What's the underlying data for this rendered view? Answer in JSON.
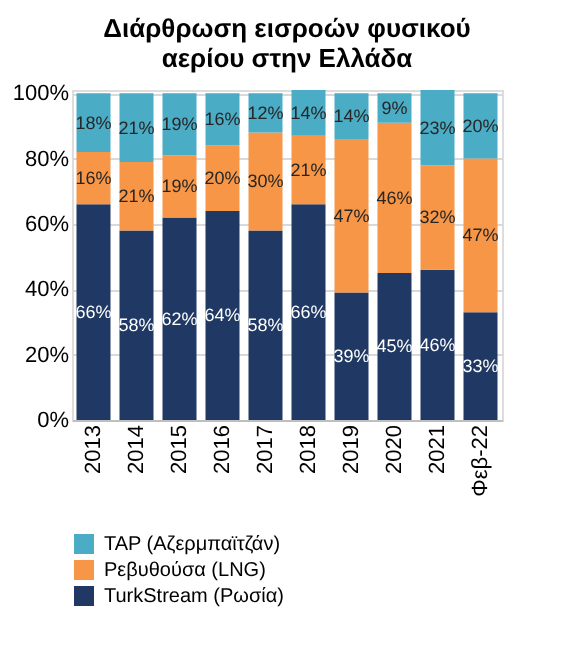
{
  "chart_data": {
    "type": "bar",
    "stacked": true,
    "title": "Διάρθρωση εισροών φυσικού αερίου στην Ελλάδα",
    "categories": [
      "2013",
      "2014",
      "2015",
      "2016",
      "2017",
      "2018",
      "2019",
      "2020",
      "2021",
      "Φεβ-22"
    ],
    "series": [
      {
        "name": "TurkStream (Ρωσία)",
        "color": "#203864",
        "values": [
          66,
          58,
          62,
          64,
          58,
          66,
          39,
          45,
          46,
          33
        ],
        "value_labels": [
          "66%",
          "58%",
          "62%",
          "64%",
          "58%",
          "66%",
          "39%",
          "45%",
          "46%",
          "33%"
        ]
      },
      {
        "name": "Ρεβυθούσα (LNG)",
        "color": "#f79646",
        "values": [
          16,
          21,
          19,
          20,
          30,
          21,
          47,
          46,
          32,
          47
        ],
        "value_labels": [
          "16%",
          "21%",
          "19%",
          "20%",
          "30%",
          "21%",
          "47%",
          "46%",
          "32%",
          "47%"
        ]
      },
      {
        "name": "TAP (Αζερμπαϊτζάν)",
        "color": "#4bacc6",
        "values": [
          18,
          21,
          19,
          16,
          12,
          14,
          14,
          9,
          23,
          20
        ],
        "value_labels": [
          "18%",
          "21%",
          "19%",
          "16%",
          "12%",
          "14%",
          "14%",
          "9%",
          "23%",
          "20%"
        ]
      }
    ],
    "ylim": [
      0,
      101
    ],
    "yticks": [
      {
        "value": 0,
        "label": "0%"
      },
      {
        "value": 20,
        "label": "20%"
      },
      {
        "value": 40,
        "label": "40%"
      },
      {
        "value": 60,
        "label": "60%"
      },
      {
        "value": 80,
        "label": "80%"
      },
      {
        "value": 100,
        "label": "100%"
      }
    ],
    "grid": "y",
    "legend": "bottom"
  }
}
